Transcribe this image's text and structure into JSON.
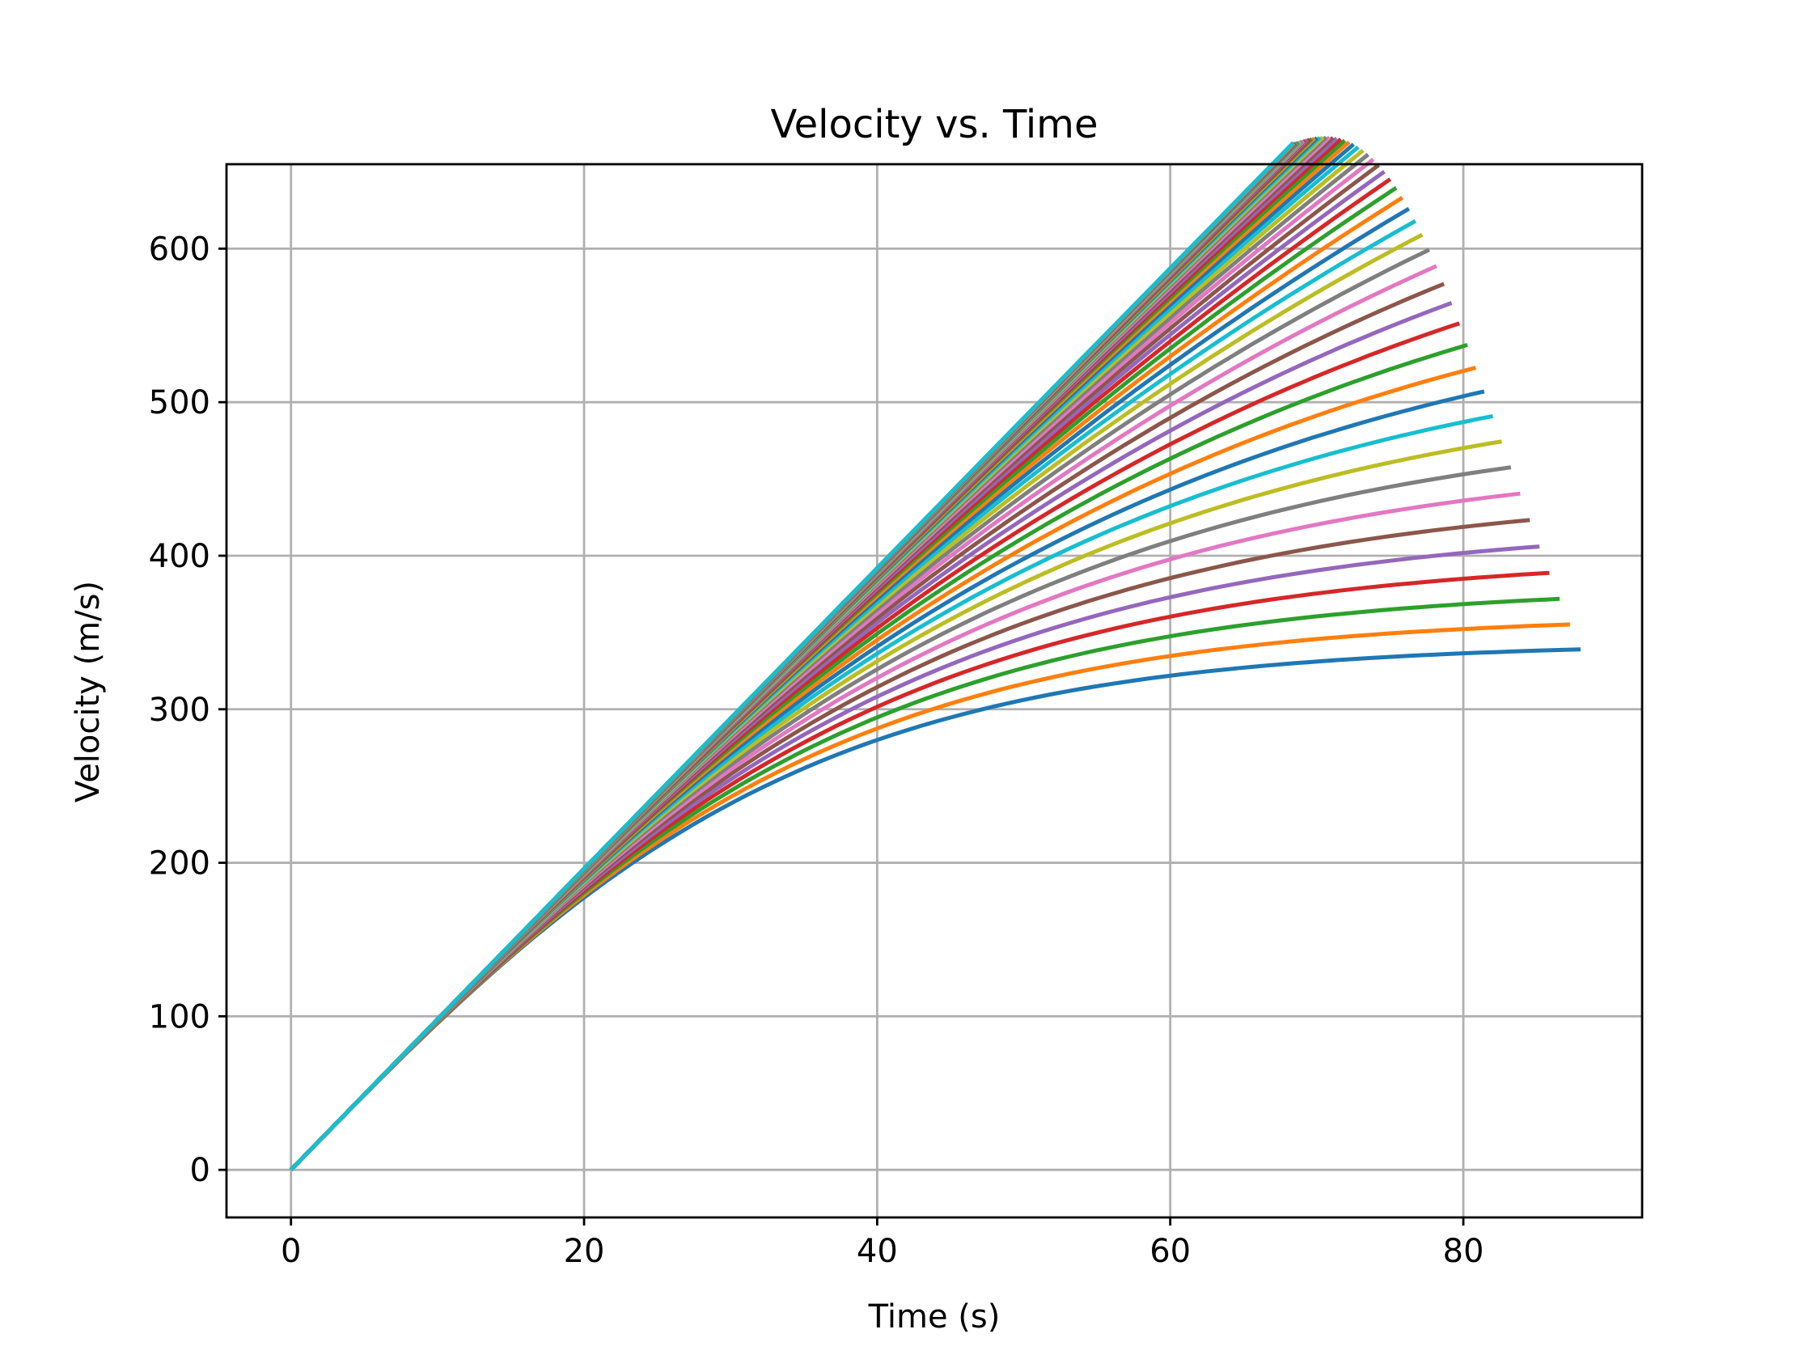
{
  "chart_data": {
    "type": "line",
    "title": "Velocity vs. Time",
    "xlabel": "Time (s)",
    "ylabel": "Velocity (m/s)",
    "xlim": [
      -4.4,
      92.2
    ],
    "ylim": [
      -31,
      655
    ],
    "xticks": [
      0,
      20,
      40,
      60,
      80
    ],
    "yticks": [
      0,
      100,
      200,
      300,
      400,
      500,
      600
    ],
    "grid": true,
    "legend": "none",
    "colors": [
      "#1f77b4",
      "#ff7f0e",
      "#2ca02c",
      "#d62728",
      "#9467bd",
      "#8c564b",
      "#e377c2",
      "#7f7f7f",
      "#bcbd22",
      "#17becf"
    ],
    "series_family": {
      "count": 60,
      "shape": "each curve rises from (0, 0) with initial slope of about 9.81 m/s per second and bends toward its terminal velocity; the curve with the lowest terminal velocity runs longest",
      "t_end_range": [
        68.4,
        88.0
      ],
      "v_end_range": [
        624,
        342
      ],
      "v_at_t40_range": [
        280,
        392
      ]
    },
    "series": [
      {
        "color": "#1f77b4",
        "t_end": 88.0,
        "v_end": 342,
        "points": [
          [
            0,
            0
          ],
          [
            20,
            177
          ],
          [
            40,
            280
          ],
          [
            60,
            323
          ],
          [
            88,
            342
          ]
        ]
      },
      {
        "color": "#d62728",
        "t_end": 83.7,
        "v_end": 378,
        "points": [
          [
            0,
            0
          ],
          [
            20,
            181
          ],
          [
            40,
            297
          ],
          [
            60,
            351
          ],
          [
            83.7,
            378
          ]
        ]
      },
      {
        "color": "#e377c2",
        "t_end": 81.7,
        "v_end": 399,
        "points": [
          [
            0,
            0
          ],
          [
            40,
            305
          ],
          [
            81.7,
            399
          ]
        ]
      },
      {
        "color": "#17becf",
        "t_end": 80.2,
        "v_end": 414,
        "points": [
          [
            0,
            0
          ],
          [
            40,
            312
          ],
          [
            80.2,
            414
          ]
        ]
      },
      {
        "color": "#17becf",
        "t_end": 68.4,
        "v_end": 624,
        "points": [
          [
            0,
            0
          ],
          [
            20,
            195
          ],
          [
            40,
            388
          ],
          [
            60,
            561
          ],
          [
            68.4,
            624
          ]
        ]
      }
    ]
  }
}
